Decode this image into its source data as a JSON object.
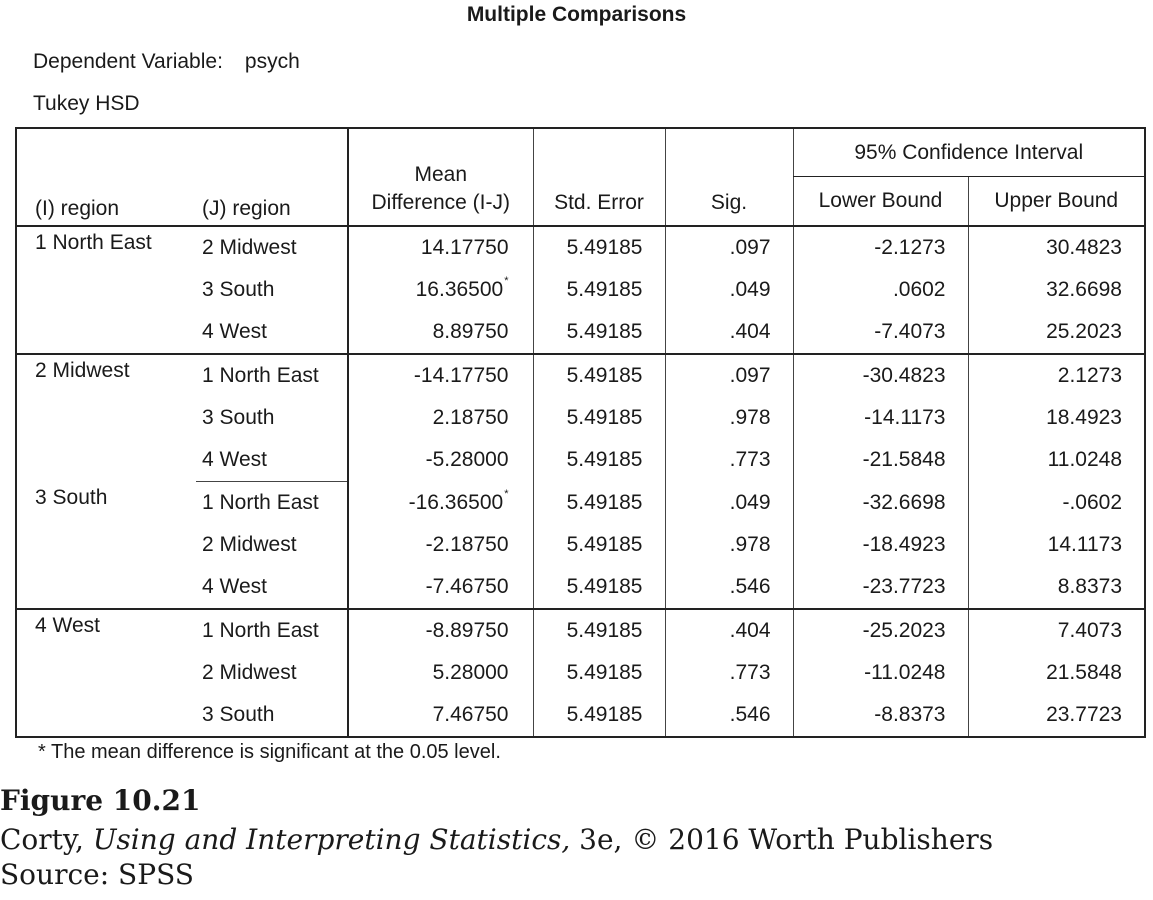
{
  "title": "Multiple Comparisons",
  "dependent_label": "Dependent Variable:",
  "dependent_value": "psych",
  "method": "Tukey HSD",
  "headers": {
    "i_region": "(I) region",
    "j_region": "(J) region",
    "mean_diff": "Mean Difference (I-J)",
    "std_error": "Std. Error",
    "sig": "Sig.",
    "ci": "95% Confidence Interval",
    "lower": "Lower Bound",
    "upper": "Upper Bound"
  },
  "groups": [
    {
      "i": "1 North East",
      "rows": [
        {
          "j": "2 Midwest",
          "mean": "14.17750",
          "star": "",
          "se": "5.49185",
          "sig": ".097",
          "lower": "-2.1273",
          "upper": "30.4823"
        },
        {
          "j": "3 South",
          "mean": "16.36500",
          "star": "*",
          "se": "5.49185",
          "sig": ".049",
          "lower": ".0602",
          "upper": "32.6698"
        },
        {
          "j": "4 West",
          "mean": "8.89750",
          "star": "",
          "se": "5.49185",
          "sig": ".404",
          "lower": "-7.4073",
          "upper": "25.2023"
        }
      ]
    },
    {
      "i": "2 Midwest",
      "rows": [
        {
          "j": "1 North East",
          "mean": "-14.17750",
          "star": "",
          "se": "5.49185",
          "sig": ".097",
          "lower": "-30.4823",
          "upper": "2.1273"
        },
        {
          "j": "3 South",
          "mean": "2.18750",
          "star": "",
          "se": "5.49185",
          "sig": ".978",
          "lower": "-14.1173",
          "upper": "18.4923"
        },
        {
          "j": "4 West",
          "mean": "-5.28000",
          "star": "",
          "se": "5.49185",
          "sig": ".773",
          "lower": "-21.5848",
          "upper": "11.0248"
        }
      ]
    },
    {
      "i": "3 South",
      "rows": [
        {
          "j": "1 North East",
          "mean": "-16.36500",
          "star": "*",
          "se": "5.49185",
          "sig": ".049",
          "lower": "-32.6698",
          "upper": "-.0602"
        },
        {
          "j": "2 Midwest",
          "mean": "-2.18750",
          "star": "",
          "se": "5.49185",
          "sig": ".978",
          "lower": "-18.4923",
          "upper": "14.1173"
        },
        {
          "j": "4 West",
          "mean": "-7.46750",
          "star": "",
          "se": "5.49185",
          "sig": ".546",
          "lower": "-23.7723",
          "upper": "8.8373"
        }
      ]
    },
    {
      "i": "4 West",
      "rows": [
        {
          "j": "1 North East",
          "mean": "-8.89750",
          "star": "",
          "se": "5.49185",
          "sig": ".404",
          "lower": "-25.2023",
          "upper": "7.4073"
        },
        {
          "j": "2 Midwest",
          "mean": "5.28000",
          "star": "",
          "se": "5.49185",
          "sig": ".773",
          "lower": "-11.0248",
          "upper": "21.5848"
        },
        {
          "j": "3 South",
          "mean": "7.46750",
          "star": "",
          "se": "5.49185",
          "sig": ".546",
          "lower": "-8.8373",
          "upper": "23.7723"
        }
      ]
    }
  ],
  "footnote": "* The mean difference is significant at the 0.05 level.",
  "figure": {
    "number": "Figure 10.21",
    "cite_author": "Corty, ",
    "cite_title": "Using and Interpreting Statistics,",
    "cite_rest": " 3e, © 2016 Worth Publishers",
    "source": "Source: SPSS"
  }
}
